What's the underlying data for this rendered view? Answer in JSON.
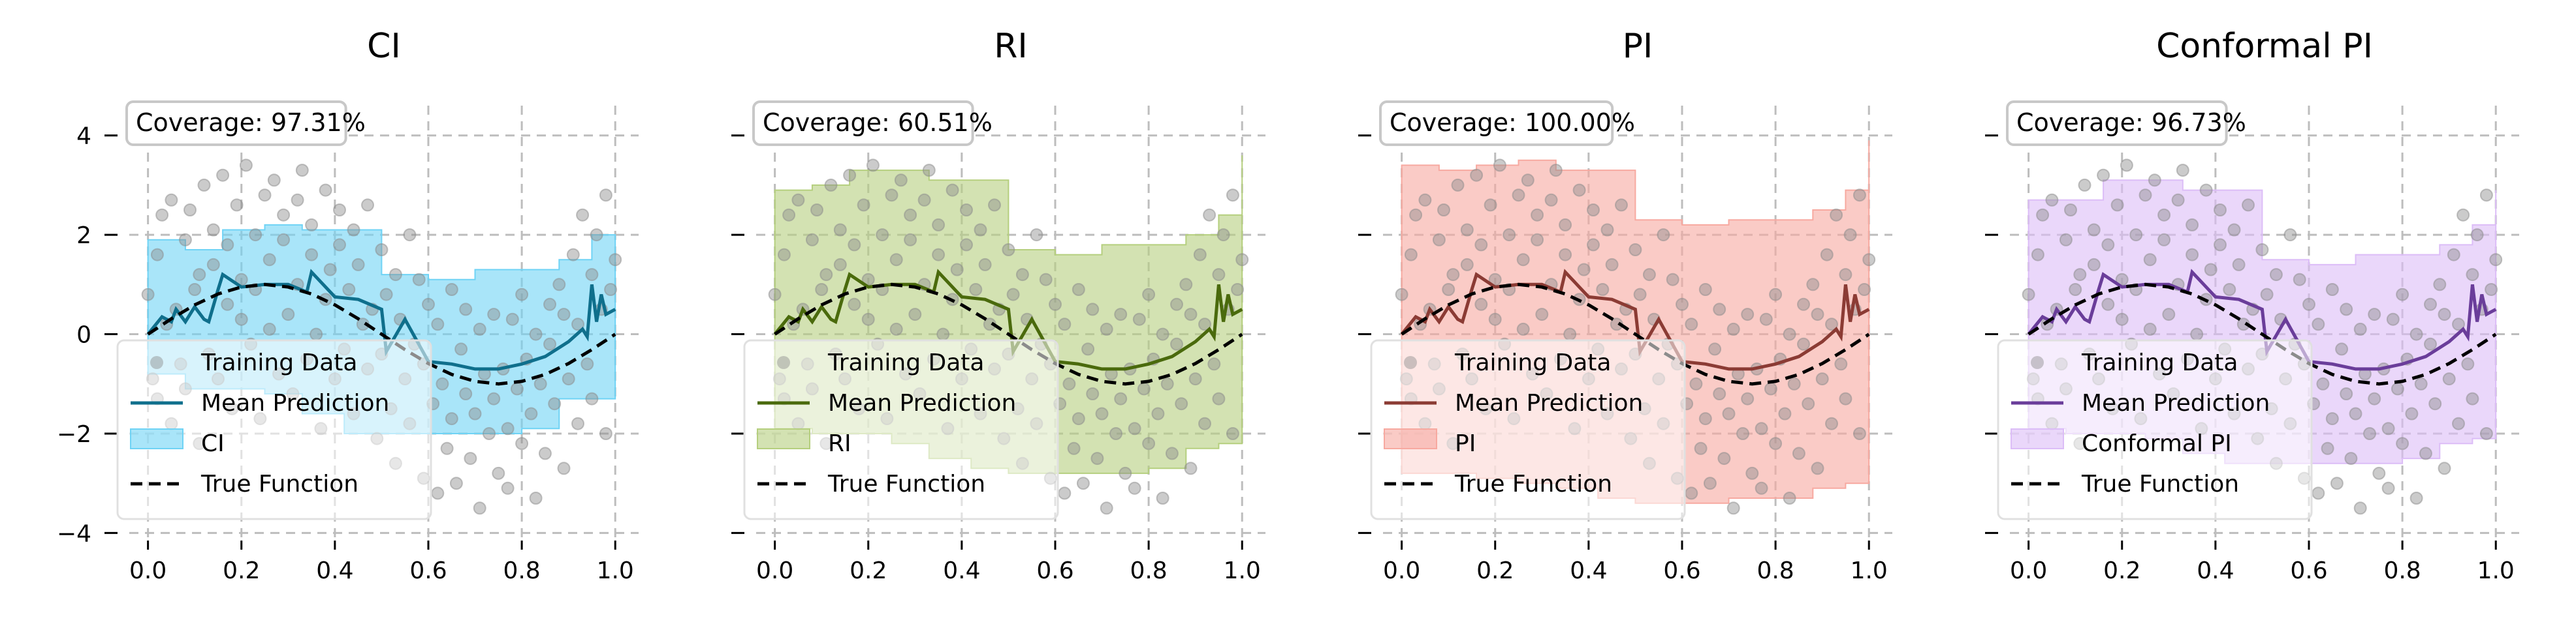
{
  "chart_data": [
    {
      "type": "line",
      "title": "CI",
      "interval_label": "CI",
      "coverage": "Coverage: 97.31%",
      "color": "#0f6f8c",
      "fill": "#6fd3f5",
      "band_lower": [
        -0.8,
        -1.1,
        -1.1,
        -1.2,
        -1.6,
        -2.0,
        -2.0,
        -2.0,
        -2.0,
        -1.9,
        -1.3,
        -1.3,
        -1.2
      ],
      "band_upper": [
        1.9,
        1.7,
        2.1,
        2.2,
        2.1,
        2.1,
        1.2,
        1.1,
        1.3,
        1.3,
        1.5,
        2.0,
        1.2
      ]
    },
    {
      "type": "line",
      "title": "RI",
      "interval_label": "RI",
      "coverage": "Coverage: 60.51%",
      "color": "#4a6a0c",
      "fill": "#b5cf7e",
      "band_lower": [
        -1.9,
        -2.0,
        -2.0,
        -2.2,
        -2.5,
        -2.7,
        -2.8,
        -2.8,
        -2.8,
        -2.7,
        -2.3,
        -2.2,
        -2.2
      ],
      "band_upper": [
        2.9,
        3.0,
        3.3,
        3.3,
        3.1,
        3.1,
        1.7,
        1.6,
        1.8,
        1.8,
        2.0,
        2.4,
        3.6
      ]
    },
    {
      "type": "line",
      "title": "PI",
      "interval_label": "PI",
      "coverage": "Coverage: 100.00%",
      "color": "#8b3b34",
      "fill": "#f7a9a0",
      "band_lower": [
        -2.8,
        -2.8,
        -2.9,
        -3.0,
        -3.1,
        -3.3,
        -3.4,
        -3.4,
        -3.3,
        -3.3,
        -3.1,
        -3.0,
        -3.0
      ],
      "band_upper": [
        3.4,
        3.3,
        3.4,
        3.5,
        3.3,
        3.3,
        2.3,
        2.2,
        2.3,
        2.3,
        2.5,
        2.9,
        3.9
      ]
    },
    {
      "type": "line",
      "title": "Conformal PI",
      "interval_label": "Conformal PI",
      "coverage": "Coverage: 96.73%",
      "color": "#6a3d9a",
      "fill": "#dcbdf7",
      "band_lower": [
        -1.9,
        -2.0,
        -2.0,
        -2.1,
        -2.4,
        -2.6,
        -2.6,
        -2.6,
        -2.6,
        -2.5,
        -2.2,
        -2.1,
        -2.1
      ],
      "band_upper": [
        2.7,
        2.7,
        3.1,
        3.1,
        2.9,
        2.9,
        1.5,
        1.4,
        1.6,
        1.6,
        1.8,
        2.2,
        2.9
      ]
    }
  ],
  "shared": {
    "x_ticks": [
      "0.0",
      "0.2",
      "0.4",
      "0.6",
      "0.8",
      "1.0"
    ],
    "y_ticks": [
      "4",
      "2",
      "0",
      "−2",
      "−4"
    ],
    "xlim": [
      -0.04,
      1.05
    ],
    "ylim": [
      -4.1,
      4.6
    ],
    "grid": true,
    "legend_position": "lower-left",
    "legend": {
      "training": "Training Data",
      "mean": "Mean Prediction",
      "true": "True Function"
    },
    "band_x": [
      0.0,
      0.08,
      0.16,
      0.25,
      0.33,
      0.42,
      0.5,
      0.6,
      0.7,
      0.8,
      0.88,
      0.95,
      1.0
    ],
    "mean_x": [
      0.0,
      0.03,
      0.05,
      0.06,
      0.08,
      0.1,
      0.12,
      0.13,
      0.15,
      0.16,
      0.2,
      0.25,
      0.3,
      0.34,
      0.35,
      0.4,
      0.45,
      0.5,
      0.51,
      0.55,
      0.6,
      0.65,
      0.7,
      0.75,
      0.8,
      0.85,
      0.9,
      0.93,
      0.94,
      0.95,
      0.96,
      0.97,
      0.98,
      1.0
    ],
    "mean_y": [
      0.0,
      0.35,
      0.25,
      0.5,
      0.25,
      0.55,
      0.3,
      0.25,
      0.9,
      1.2,
      0.95,
      1.0,
      1.0,
      0.85,
      1.25,
      0.75,
      0.7,
      0.5,
      -0.35,
      0.3,
      -0.55,
      -0.6,
      -0.7,
      -0.7,
      -0.6,
      -0.45,
      -0.15,
      0.1,
      -0.05,
      1.0,
      0.25,
      0.8,
      0.4,
      0.5
    ],
    "true_x": [
      0.0,
      0.05,
      0.1,
      0.15,
      0.2,
      0.25,
      0.3,
      0.35,
      0.4,
      0.45,
      0.5,
      0.55,
      0.6,
      0.65,
      0.7,
      0.75,
      0.8,
      0.85,
      0.9,
      0.95,
      1.0
    ],
    "true_y": [
      0.0,
      0.31,
      0.59,
      0.81,
      0.95,
      1.0,
      0.95,
      0.81,
      0.59,
      0.31,
      0.0,
      -0.31,
      -0.59,
      -0.81,
      -0.95,
      -1.0,
      -0.95,
      -0.81,
      -0.59,
      -0.31,
      0.0
    ],
    "scatter_x": [
      0.0,
      0.01,
      0.02,
      0.02,
      0.03,
      0.04,
      0.05,
      0.05,
      0.06,
      0.07,
      0.08,
      0.08,
      0.09,
      0.1,
      0.11,
      0.11,
      0.12,
      0.13,
      0.14,
      0.14,
      0.15,
      0.16,
      0.17,
      0.17,
      0.18,
      0.19,
      0.2,
      0.2,
      0.21,
      0.22,
      0.23,
      0.23,
      0.24,
      0.25,
      0.26,
      0.26,
      0.27,
      0.28,
      0.29,
      0.29,
      0.3,
      0.31,
      0.32,
      0.32,
      0.33,
      0.34,
      0.35,
      0.35,
      0.36,
      0.37,
      0.38,
      0.38,
      0.39,
      0.4,
      0.41,
      0.41,
      0.42,
      0.43,
      0.44,
      0.44,
      0.45,
      0.46,
      0.47,
      0.47,
      0.48,
      0.49,
      0.5,
      0.5,
      0.51,
      0.52,
      0.53,
      0.53,
      0.54,
      0.55,
      0.56,
      0.56,
      0.57,
      0.58,
      0.59,
      0.59,
      0.6,
      0.61,
      0.62,
      0.62,
      0.63,
      0.64,
      0.65,
      0.65,
      0.66,
      0.67,
      0.68,
      0.68,
      0.69,
      0.7,
      0.71,
      0.71,
      0.72,
      0.73,
      0.74,
      0.74,
      0.75,
      0.76,
      0.77,
      0.77,
      0.78,
      0.79,
      0.8,
      0.8,
      0.81,
      0.82,
      0.83,
      0.83,
      0.84,
      0.85,
      0.86,
      0.86,
      0.87,
      0.88,
      0.89,
      0.89,
      0.9,
      0.91,
      0.92,
      0.92,
      0.93,
      0.94,
      0.95,
      0.95,
      0.96,
      0.97,
      0.98,
      0.98,
      0.99,
      1.0
    ],
    "scatter_y": [
      0.8,
      -0.9,
      1.6,
      -1.3,
      2.4,
      0.2,
      -1.8,
      2.7,
      0.5,
      -0.6,
      1.9,
      -1.1,
      2.5,
      0.9,
      -2.2,
      1.2,
      3.0,
      -0.4,
      1.4,
      2.1,
      -0.9,
      3.2,
      0.6,
      1.8,
      -1.5,
      2.6,
      0.3,
      1.1,
      3.4,
      -0.2,
      2.0,
      0.9,
      -1.7,
      2.8,
      1.5,
      0.1,
      3.1,
      -0.8,
      1.9,
      2.4,
      0.4,
      -1.2,
      2.7,
      1.0,
      3.3,
      -0.5,
      1.6,
      2.2,
      0.0,
      -1.9,
      2.9,
      0.7,
      1.3,
      -0.9,
      2.5,
      1.8,
      -0.3,
      0.9,
      2.1,
      -1.6,
      1.4,
      0.2,
      -0.7,
      2.6,
      0.5,
      -2.1,
      1.7,
      -0.4,
      0.8,
      -1.5,
      1.2,
      -2.6,
      0.3,
      -0.9,
      2.0,
      -1.8,
      -0.2,
      1.1,
      -2.9,
      -0.6,
      0.6,
      -1.4,
      -3.2,
      0.2,
      -1.0,
      -2.3,
      0.9,
      -1.7,
      -3.0,
      -0.3,
      -1.2,
      0.5,
      -2.5,
      -1.6,
      -3.5,
      0.1,
      -0.8,
      -2.0,
      -1.3,
      0.4,
      -2.8,
      -0.7,
      -1.9,
      -3.1,
      0.3,
      -1.1,
      -2.2,
      0.8,
      -0.5,
      -1.6,
      -3.3,
      0.0,
      -1.0,
      -2.4,
      0.6,
      -0.2,
      -1.4,
      1.0,
      -2.7,
      0.4,
      -0.9,
      1.6,
      -1.8,
      0.2,
      2.4,
      -0.6,
      1.2,
      -1.3,
      2.0,
      0.5,
      -2.0,
      2.8,
      0.9,
      1.5
    ]
  }
}
